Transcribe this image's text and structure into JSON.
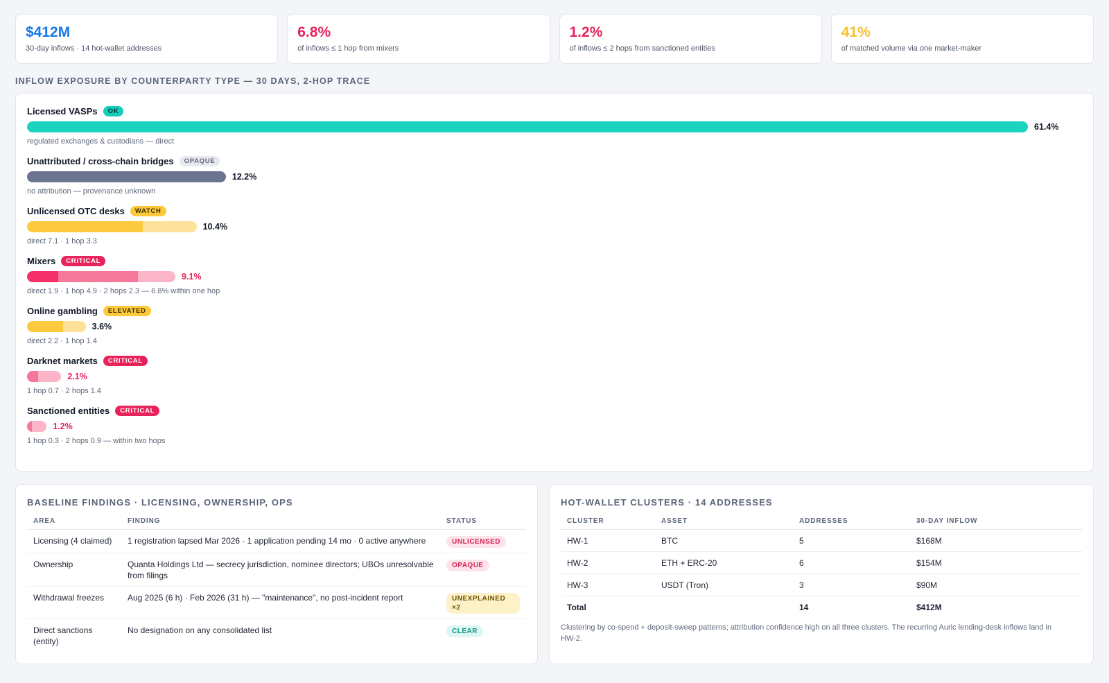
{
  "kpis": [
    {
      "value": "$412M",
      "label": "30-day inflows · 14 hot-wallet addresses",
      "color": "#1679e8"
    },
    {
      "value": "6.8%",
      "label": "of inflows ≤ 1 hop from mixers",
      "color": "#e8225a"
    },
    {
      "value": "1.2%",
      "label": "of inflows ≤ 2 hops from sanctioned entities",
      "color": "#e8225a"
    },
    {
      "value": "41%",
      "label": "of matched volume via one market-maker",
      "color": "#f5c02e"
    }
  ],
  "exposure": {
    "title": "INFLOW EXPOSURE BY COUNTERPARTY TYPE — 30 DAYS, 2-HOP TRACE",
    "rows": [
      {
        "name": "Licensed VASPs",
        "badge": "OK",
        "badge_bg": "#14cdb8",
        "badge_fg": "#08302c",
        "percent": "61.4%",
        "value": 61.4,
        "pct_color": "#111827",
        "segments": [
          {
            "value": 61.4,
            "color": "#1cd3c0"
          }
        ],
        "note": "regulated exchanges & custodians — direct"
      },
      {
        "name": "Unattributed / cross-chain bridges",
        "badge": "OPAQUE",
        "badge_bg": "#e7e9ee",
        "badge_fg": "#5f687b",
        "percent": "12.2%",
        "value": 12.2,
        "pct_color": "#111827",
        "segments": [
          {
            "value": 12.2,
            "color": "#6b7491"
          }
        ],
        "note": "no attribution — provenance unknown"
      },
      {
        "name": "Unlicensed OTC desks",
        "badge": "WATCH",
        "badge_bg": "#fcc93a",
        "badge_fg": "#3d2e00",
        "percent": "10.4%",
        "value": 10.4,
        "pct_color": "#111827",
        "segments": [
          {
            "value": 7.1,
            "color": "#fdc93e"
          },
          {
            "value": 3.3,
            "color": "#fee29b"
          }
        ],
        "note": "direct 7.1 · 1 hop 3.3"
      },
      {
        "name": "Mixers",
        "badge": "CRITICAL",
        "badge_bg": "#e8225a",
        "badge_fg": "#ffffff",
        "percent": "9.1%",
        "value": 9.1,
        "pct_color": "#e8225a",
        "segments": [
          {
            "value": 1.9,
            "color": "#f4306a"
          },
          {
            "value": 4.9,
            "color": "#f57799"
          },
          {
            "value": 2.3,
            "color": "#fbb4c8"
          }
        ],
        "note": "direct 1.9 · 1 hop 4.9 · 2 hops 2.3 — 6.8% within one hop"
      },
      {
        "name": "Online gambling",
        "badge": "ELEVATED",
        "badge_bg": "#fcc93a",
        "badge_fg": "#3d2e00",
        "percent": "3.6%",
        "value": 3.6,
        "pct_color": "#111827",
        "segments": [
          {
            "value": 2.2,
            "color": "#fdc93e"
          },
          {
            "value": 1.4,
            "color": "#fee29b"
          }
        ],
        "note": "direct 2.2 · 1 hop 1.4"
      },
      {
        "name": "Darknet markets",
        "badge": "CRITICAL",
        "badge_bg": "#e8225a",
        "badge_fg": "#ffffff",
        "percent": "2.1%",
        "value": 2.1,
        "pct_color": "#e8225a",
        "segments": [
          {
            "value": 0.7,
            "color": "#f57799"
          },
          {
            "value": 1.4,
            "color": "#fbb4c8"
          }
        ],
        "note": "1 hop 0.7 · 2 hops 1.4"
      },
      {
        "name": "Sanctioned entities",
        "badge": "CRITICAL",
        "badge_bg": "#e8225a",
        "badge_fg": "#ffffff",
        "percent": "1.2%",
        "value": 1.2,
        "pct_color": "#e8225a",
        "segments": [
          {
            "value": 0.3,
            "color": "#f57799"
          },
          {
            "value": 0.9,
            "color": "#fbb4c8"
          }
        ],
        "note": "1 hop 0.3 · 2 hops 0.9 — within two hops"
      }
    ]
  },
  "findings": {
    "title": "BASELINE FINDINGS · LICENSING, OWNERSHIP, OPS",
    "headers": [
      "AREA",
      "FINDING",
      "STATUS"
    ],
    "rows": [
      {
        "area": "Licensing (4 claimed)",
        "finding": "1 registration lapsed Mar 2026 · 1 application pending 14 mo · 0 active anywhere",
        "status": "UNLICENSED",
        "status_bg": "#fde3ea",
        "status_fg": "#d81f55"
      },
      {
        "area": "Ownership",
        "finding": "Quanta Holdings Ltd — secrecy jurisdiction, nominee directors; UBOs unresolvable from filings",
        "status": "OPAQUE",
        "status_bg": "#fde3ea",
        "status_fg": "#d81f55"
      },
      {
        "area": "Withdrawal freezes",
        "finding": "Aug 2025 (6 h) · Feb 2026 (31 h) — \"maintenance\", no post-incident report",
        "status": "UNEXPLAINED ×2",
        "status_bg": "#fdf1c8",
        "status_fg": "#6b5200"
      },
      {
        "area": "Direct sanctions (entity)",
        "finding": "No designation on any consolidated list",
        "status": "CLEAR",
        "status_bg": "#dcf6f2",
        "status_fg": "#119884"
      }
    ]
  },
  "clusters": {
    "title": "HOT-WALLET CLUSTERS · 14 ADDRESSES",
    "headers": [
      "CLUSTER",
      "ASSET",
      "ADDRESSES",
      "30-DAY INFLOW"
    ],
    "rows": [
      {
        "cluster": "HW-1",
        "asset": "BTC",
        "addresses": "5",
        "inflow": "$168M"
      },
      {
        "cluster": "HW-2",
        "asset": "ETH + ERC-20",
        "addresses": "6",
        "inflow": "$154M"
      },
      {
        "cluster": "HW-3",
        "asset": "USDT (Tron)",
        "addresses": "3",
        "inflow": "$90M"
      }
    ],
    "total": {
      "label": "Total",
      "asset": "",
      "addresses": "14",
      "inflow": "$412M"
    },
    "note": "Clustering by co-spend + deposit-sweep patterns; attribution confidence high on all three clusters. The recurring Auric lending-desk inflows land in HW-2."
  }
}
